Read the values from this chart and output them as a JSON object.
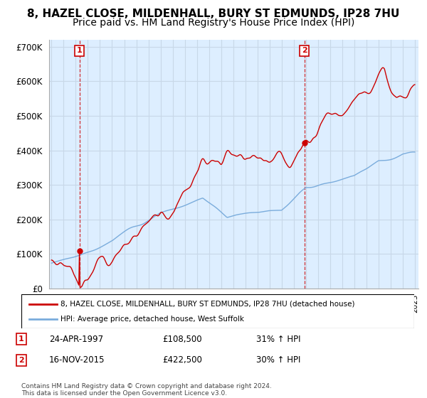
{
  "title1": "8, HAZEL CLOSE, MILDENHALL, BURY ST EDMUNDS, IP28 7HU",
  "title2": "Price paid vs. HM Land Registry's House Price Index (HPI)",
  "legend_red": "8, HAZEL CLOSE, MILDENHALL, BURY ST EDMUNDS, IP28 7HU (detached house)",
  "legend_blue": "HPI: Average price, detached house, West Suffolk",
  "annotation1_date": "24-APR-1997",
  "annotation1_price": "£108,500",
  "annotation1_hpi": "31% ↑ HPI",
  "annotation2_date": "16-NOV-2015",
  "annotation2_price": "£422,500",
  "annotation2_hpi": "30% ↑ HPI",
  "copyright": "Contains HM Land Registry data © Crown copyright and database right 2024.\nThis data is licensed under the Open Government Licence v3.0.",
  "sale1_year": 1997.31,
  "sale1_value": 108500,
  "sale2_year": 2015.88,
  "sale2_value": 422500,
  "ylim": [
    0,
    720000
  ],
  "xlim_start": 1994.8,
  "xlim_end": 2025.3,
  "red_color": "#cc0000",
  "blue_color": "#7aacdc",
  "vline_color": "#cc0000",
  "grid_color": "#c8d8e8",
  "plot_bg_color": "#ddeeff",
  "background_color": "#ffffff",
  "title_fontsize": 11,
  "subtitle_fontsize": 10
}
